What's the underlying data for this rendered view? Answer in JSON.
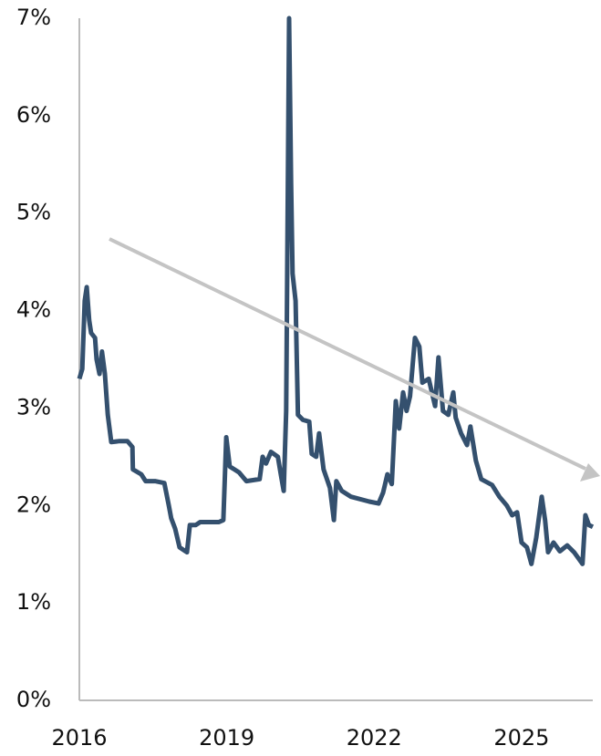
{
  "chart_data": {
    "type": "line",
    "x": [
      2016.0,
      2016.06,
      2016.11,
      2016.15,
      2016.2,
      2016.24,
      2016.32,
      2016.35,
      2016.41,
      2016.46,
      2016.52,
      2016.58,
      2016.65,
      2016.8,
      2016.98,
      2017.08,
      2017.09,
      2017.26,
      2017.35,
      2017.54,
      2017.73,
      2017.82,
      2017.87,
      2017.95,
      2018.04,
      2018.19,
      2018.25,
      2018.37,
      2018.46,
      2018.84,
      2018.93,
      2018.99,
      2019.06,
      2019.25,
      2019.4,
      2019.67,
      2019.73,
      2019.8,
      2019.9,
      2020.04,
      2020.1,
      2020.16,
      2020.21,
      2020.27,
      2020.31,
      2020.34,
      2020.4,
      2020.45,
      2020.55,
      2020.68,
      2020.73,
      2020.82,
      2020.88,
      2020.97,
      2021.1,
      2021.18,
      2021.23,
      2021.34,
      2021.53,
      2021.9,
      2022.09,
      2022.18,
      2022.27,
      2022.36,
      2022.44,
      2022.51,
      2022.59,
      2022.66,
      2022.73,
      2022.83,
      2022.92,
      2022.98,
      2023.11,
      2023.24,
      2023.31,
      2023.4,
      2023.51,
      2023.61,
      2023.66,
      2023.77,
      2023.89,
      2023.96,
      2024.07,
      2024.18,
      2024.4,
      2024.55,
      2024.7,
      2024.81,
      2024.91,
      2025.0,
      2025.11,
      2025.2,
      2025.3,
      2025.41,
      2025.48,
      2025.54,
      2025.65,
      2025.78,
      2025.93,
      2026.07,
      2026.24,
      2026.3,
      2026.37,
      2026.45
    ],
    "values": [
      3.3,
      3.4,
      4.1,
      4.24,
      3.9,
      3.77,
      3.72,
      3.5,
      3.35,
      3.58,
      3.35,
      2.93,
      2.65,
      2.66,
      2.66,
      2.6,
      2.37,
      2.32,
      2.25,
      2.25,
      2.23,
      2.0,
      1.87,
      1.76,
      1.57,
      1.52,
      1.8,
      1.8,
      1.83,
      1.83,
      1.85,
      2.7,
      2.4,
      2.34,
      2.25,
      2.27,
      2.5,
      2.43,
      2.55,
      2.5,
      2.32,
      2.15,
      2.97,
      7.0,
      5.3,
      4.38,
      4.1,
      2.93,
      2.88,
      2.86,
      2.53,
      2.5,
      2.74,
      2.37,
      2.18,
      1.85,
      2.25,
      2.15,
      2.09,
      2.04,
      2.02,
      2.13,
      2.32,
      2.22,
      3.07,
      2.79,
      3.16,
      2.97,
      3.12,
      3.72,
      3.63,
      3.26,
      3.3,
      3.02,
      3.52,
      2.97,
      2.93,
      3.16,
      2.9,
      2.74,
      2.62,
      2.81,
      2.46,
      2.27,
      2.21,
      2.09,
      2.0,
      1.9,
      1.93,
      1.62,
      1.57,
      1.4,
      1.67,
      2.09,
      1.85,
      1.52,
      1.62,
      1.53,
      1.59,
      1.52,
      1.4,
      1.9,
      1.8,
      1.78
    ],
    "color": "#34506e",
    "xlim": [
      2016,
      2026.45
    ],
    "xticks": [
      2016,
      2019,
      2022,
      2025
    ],
    "ylim": [
      0,
      7
    ],
    "yticks": [
      {
        "value": 0,
        "label": "0%"
      },
      {
        "value": 1,
        "label": "1%"
      },
      {
        "value": 2,
        "label": "2%"
      },
      {
        "value": 3,
        "label": "3%"
      },
      {
        "value": 4,
        "label": "4%"
      },
      {
        "value": 5,
        "label": "5%"
      },
      {
        "value": 6,
        "label": "6%"
      },
      {
        "value": 7,
        "label": "7%"
      }
    ],
    "grid": false
  }
}
